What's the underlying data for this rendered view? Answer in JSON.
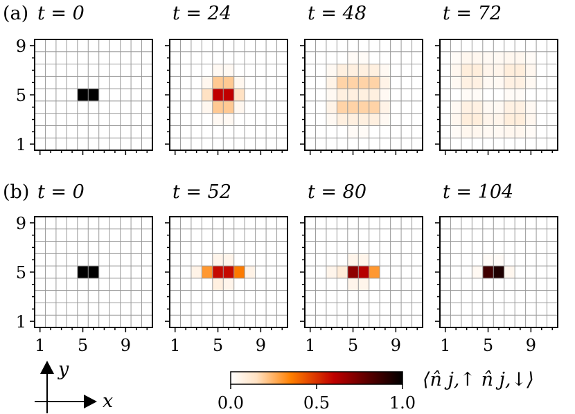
{
  "chart_data": {
    "type": "heatmap",
    "grid": true,
    "grid_size": [
      11,
      9
    ],
    "axis_ticks": {
      "x": [
        "1",
        "5",
        "9"
      ],
      "y": [
        "1",
        "5",
        "9"
      ]
    },
    "colorbar": {
      "min": 0.0,
      "max": 1.0,
      "ticks": [
        "0.0",
        "0.5",
        "1.0"
      ],
      "label": "⟨n̂ j,↑ n̂ j,↓⟩",
      "colormap": [
        "#ffffff",
        "#ffe2c4",
        "#ff7f00",
        "#c00000",
        "#5a0000",
        "#000000"
      ]
    },
    "axes_arrows": {
      "x": "x",
      "y": "y"
    },
    "rows": [
      {
        "label": "(a)",
        "panels": [
          {
            "time_label": "t = 0",
            "cells": [
              [
                5,
                5,
                1.0
              ],
              [
                6,
                5,
                1.0
              ]
            ]
          },
          {
            "time_label": "t = 24",
            "cells": [
              [
                5,
                5,
                0.6
              ],
              [
                6,
                5,
                0.6
              ],
              [
                4,
                5,
                0.15
              ],
              [
                7,
                5,
                0.15
              ],
              [
                5,
                4,
                0.2
              ],
              [
                6,
                4,
                0.2
              ],
              [
                5,
                6,
                0.2
              ],
              [
                6,
                6,
                0.2
              ],
              [
                4,
                4,
                0.04
              ],
              [
                7,
                4,
                0.04
              ],
              [
                4,
                6,
                0.04
              ],
              [
                7,
                6,
                0.04
              ],
              [
                5,
                3,
                0.03
              ],
              [
                6,
                3,
                0.03
              ],
              [
                5,
                7,
                0.03
              ],
              [
                6,
                7,
                0.03
              ]
            ]
          },
          {
            "time_label": "t = 48",
            "cells": [
              [
                4,
                4,
                0.18
              ],
              [
                5,
                4,
                0.18
              ],
              [
                6,
                4,
                0.18
              ],
              [
                7,
                4,
                0.18
              ],
              [
                4,
                6,
                0.18
              ],
              [
                5,
                6,
                0.18
              ],
              [
                6,
                6,
                0.18
              ],
              [
                7,
                6,
                0.18
              ],
              [
                3,
                4,
                0.06
              ],
              [
                8,
                4,
                0.06
              ],
              [
                3,
                6,
                0.06
              ],
              [
                8,
                6,
                0.06
              ],
              [
                4,
                5,
                0.08
              ],
              [
                5,
                5,
                0.08
              ],
              [
                6,
                5,
                0.08
              ],
              [
                7,
                5,
                0.08
              ],
              [
                4,
                3,
                0.08
              ],
              [
                5,
                3,
                0.08
              ],
              [
                6,
                3,
                0.08
              ],
              [
                7,
                3,
                0.08
              ],
              [
                4,
                7,
                0.08
              ],
              [
                5,
                7,
                0.08
              ],
              [
                6,
                7,
                0.08
              ],
              [
                7,
                7,
                0.08
              ],
              [
                3,
                5,
                0.03
              ],
              [
                8,
                5,
                0.03
              ],
              [
                3,
                3,
                0.03
              ],
              [
                8,
                3,
                0.03
              ],
              [
                3,
                7,
                0.03
              ],
              [
                8,
                7,
                0.03
              ],
              [
                5,
                8,
                0.02
              ],
              [
                6,
                8,
                0.02
              ],
              [
                5,
                2,
                0.02
              ],
              [
                6,
                2,
                0.02
              ]
            ]
          },
          {
            "time_label": "t = 72",
            "cells": [
              [
                3,
                3,
                0.09
              ],
              [
                4,
                3,
                0.09
              ],
              [
                7,
                3,
                0.09
              ],
              [
                8,
                3,
                0.09
              ],
              [
                3,
                7,
                0.09
              ],
              [
                4,
                7,
                0.09
              ],
              [
                7,
                7,
                0.09
              ],
              [
                8,
                7,
                0.09
              ],
              [
                3,
                4,
                0.07
              ],
              [
                4,
                4,
                0.07
              ],
              [
                7,
                4,
                0.07
              ],
              [
                8,
                4,
                0.07
              ],
              [
                3,
                6,
                0.07
              ],
              [
                4,
                6,
                0.07
              ],
              [
                7,
                6,
                0.07
              ],
              [
                8,
                6,
                0.07
              ],
              [
                5,
                3,
                0.05
              ],
              [
                6,
                3,
                0.05
              ],
              [
                5,
                7,
                0.05
              ],
              [
                6,
                7,
                0.05
              ],
              [
                2,
                3,
                0.04
              ],
              [
                9,
                3,
                0.04
              ],
              [
                2,
                7,
                0.04
              ],
              [
                9,
                7,
                0.04
              ],
              [
                2,
                4,
                0.03
              ],
              [
                9,
                4,
                0.03
              ],
              [
                2,
                6,
                0.03
              ],
              [
                9,
                6,
                0.03
              ],
              [
                3,
                2,
                0.04
              ],
              [
                4,
                2,
                0.04
              ],
              [
                7,
                2,
                0.04
              ],
              [
                8,
                2,
                0.04
              ],
              [
                3,
                8,
                0.04
              ],
              [
                4,
                8,
                0.04
              ],
              [
                7,
                8,
                0.04
              ],
              [
                8,
                8,
                0.04
              ],
              [
                5,
                2,
                0.03
              ],
              [
                6,
                2,
                0.03
              ],
              [
                5,
                8,
                0.03
              ],
              [
                6,
                8,
                0.03
              ],
              [
                2,
                2,
                0.02
              ],
              [
                9,
                2,
                0.02
              ],
              [
                2,
                8,
                0.02
              ],
              [
                9,
                8,
                0.02
              ],
              [
                5,
                4,
                0.03
              ],
              [
                6,
                4,
                0.03
              ],
              [
                5,
                6,
                0.03
              ],
              [
                6,
                6,
                0.03
              ],
              [
                3,
                5,
                0.02
              ],
              [
                4,
                5,
                0.02
              ],
              [
                7,
                5,
                0.02
              ],
              [
                8,
                5,
                0.02
              ]
            ]
          }
        ]
      },
      {
        "label": "(b)",
        "panels": [
          {
            "time_label": "t = 0",
            "cells": [
              [
                5,
                5,
                1.0
              ],
              [
                6,
                5,
                1.0
              ]
            ]
          },
          {
            "time_label": "t = 52",
            "cells": [
              [
                5,
                5,
                0.58
              ],
              [
                6,
                5,
                0.58
              ],
              [
                4,
                5,
                0.3
              ],
              [
                7,
                5,
                0.36
              ],
              [
                3,
                5,
                0.06
              ],
              [
                8,
                5,
                0.06
              ],
              [
                5,
                4,
                0.08
              ],
              [
                6,
                4,
                0.05
              ],
              [
                5,
                6,
                0.05
              ],
              [
                6,
                6,
                0.05
              ]
            ]
          },
          {
            "time_label": "t = 80",
            "cells": [
              [
                5,
                5,
                0.7
              ],
              [
                6,
                5,
                0.62
              ],
              [
                4,
                5,
                0.1
              ],
              [
                7,
                5,
                0.3
              ],
              [
                3,
                5,
                0.05
              ],
              [
                5,
                4,
                0.05
              ],
              [
                6,
                4,
                0.05
              ],
              [
                5,
                6,
                0.05
              ],
              [
                6,
                6,
                0.05
              ]
            ]
          },
          {
            "time_label": "t = 104",
            "cells": [
              [
                5,
                5,
                0.86
              ],
              [
                6,
                5,
                0.93
              ],
              [
                4,
                5,
                0.03
              ],
              [
                7,
                5,
                0.04
              ],
              [
                5,
                6,
                0.02
              ],
              [
                6,
                6,
                0.02
              ]
            ]
          }
        ]
      }
    ]
  }
}
